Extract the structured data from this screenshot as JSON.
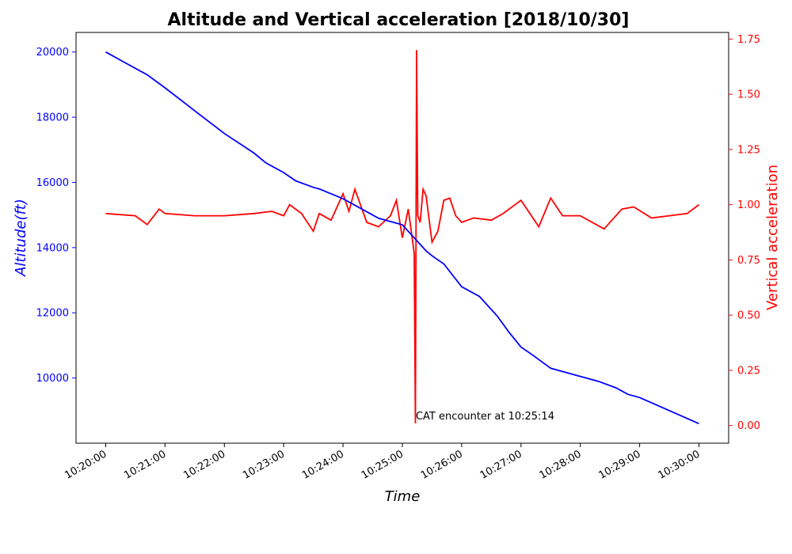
{
  "chart_data": {
    "type": "line",
    "title": "Altitude and Vertical acceleration [2018/10/30]",
    "xlabel": "Time",
    "ylabel_left": "Altitude(ft)",
    "ylabel_right": "Vertical acceleration",
    "x_ticks": [
      "10:20:00",
      "10:21:00",
      "10:22:00",
      "10:23:00",
      "10:24:00",
      "10:25:00",
      "10:26:00",
      "10:27:00",
      "10:28:00",
      "10:29:00",
      "10:30:00"
    ],
    "xlim_minutes": [
      -0.5,
      10.5
    ],
    "y_left_ticks": [
      "10000",
      "12000",
      "14000",
      "16000",
      "18000",
      "20000"
    ],
    "y_left_lim": [
      8000,
      20600
    ],
    "y_right_ticks": [
      "0.00",
      "0.25",
      "0.50",
      "0.75",
      "1.00",
      "1.25",
      "1.50",
      "1.75"
    ],
    "y_right_lim": [
      -0.08,
      1.78
    ],
    "grid": false,
    "colors": {
      "altitude": "#0000ff",
      "acceleration": "#ff0000"
    },
    "series": [
      {
        "axis": "left",
        "x_minutes": [
          0,
          0.3,
          0.6,
          0.7,
          1.0,
          1.5,
          2.0,
          2.5,
          2.7,
          3.0,
          3.2,
          3.5,
          3.6,
          4.0,
          4.3,
          4.6,
          5.0,
          5.2,
          5.4,
          5.5,
          5.7,
          6.0,
          6.3,
          6.6,
          6.8,
          7.0,
          7.2,
          7.5,
          8.0,
          8.3,
          8.6,
          8.8,
          9.0,
          9.5,
          10.0
        ],
        "values": [
          20000,
          19700,
          19400,
          19300,
          18900,
          18200,
          17500,
          16900,
          16600,
          16300,
          16050,
          15850,
          15800,
          15500,
          15200,
          14900,
          14700,
          14300,
          13900,
          13750,
          13500,
          12800,
          12500,
          11900,
          11400,
          10950,
          10700,
          10300,
          10050,
          9900,
          9700,
          9500,
          9400,
          9000,
          8600
        ]
      },
      {
        "axis": "right",
        "x_minutes": [
          0,
          0.5,
          0.7,
          0.9,
          1.0,
          1.5,
          2.0,
          2.5,
          2.8,
          3.0,
          3.1,
          3.3,
          3.5,
          3.6,
          3.8,
          4.0,
          4.1,
          4.2,
          4.4,
          4.6,
          4.8,
          4.9,
          5.0,
          5.1,
          5.2,
          5.22,
          5.24,
          5.26,
          5.3,
          5.35,
          5.4,
          5.5,
          5.6,
          5.7,
          5.8,
          5.9,
          6.0,
          6.2,
          6.5,
          6.7,
          7.0,
          7.3,
          7.5,
          7.7,
          8.0,
          8.4,
          8.7,
          8.9,
          9.2,
          9.5,
          9.8,
          10.0
        ],
        "values": [
          0.96,
          0.95,
          0.91,
          0.98,
          0.96,
          0.95,
          0.95,
          0.96,
          0.97,
          0.95,
          1.0,
          0.96,
          0.88,
          0.96,
          0.93,
          1.05,
          0.97,
          1.07,
          0.92,
          0.9,
          0.95,
          1.02,
          0.85,
          0.98,
          0.78,
          0.01,
          1.7,
          0.95,
          0.92,
          1.07,
          1.04,
          0.83,
          0.88,
          1.02,
          1.03,
          0.95,
          0.92,
          0.94,
          0.93,
          0.96,
          1.02,
          0.9,
          1.03,
          0.95,
          0.95,
          0.89,
          0.98,
          0.99,
          0.94,
          0.95,
          0.96,
          1.0
        ]
      }
    ],
    "annotation": {
      "text": "CAT encounter at 10:25:14",
      "x_minutes": 5.24,
      "y_right": 0.02
    }
  }
}
